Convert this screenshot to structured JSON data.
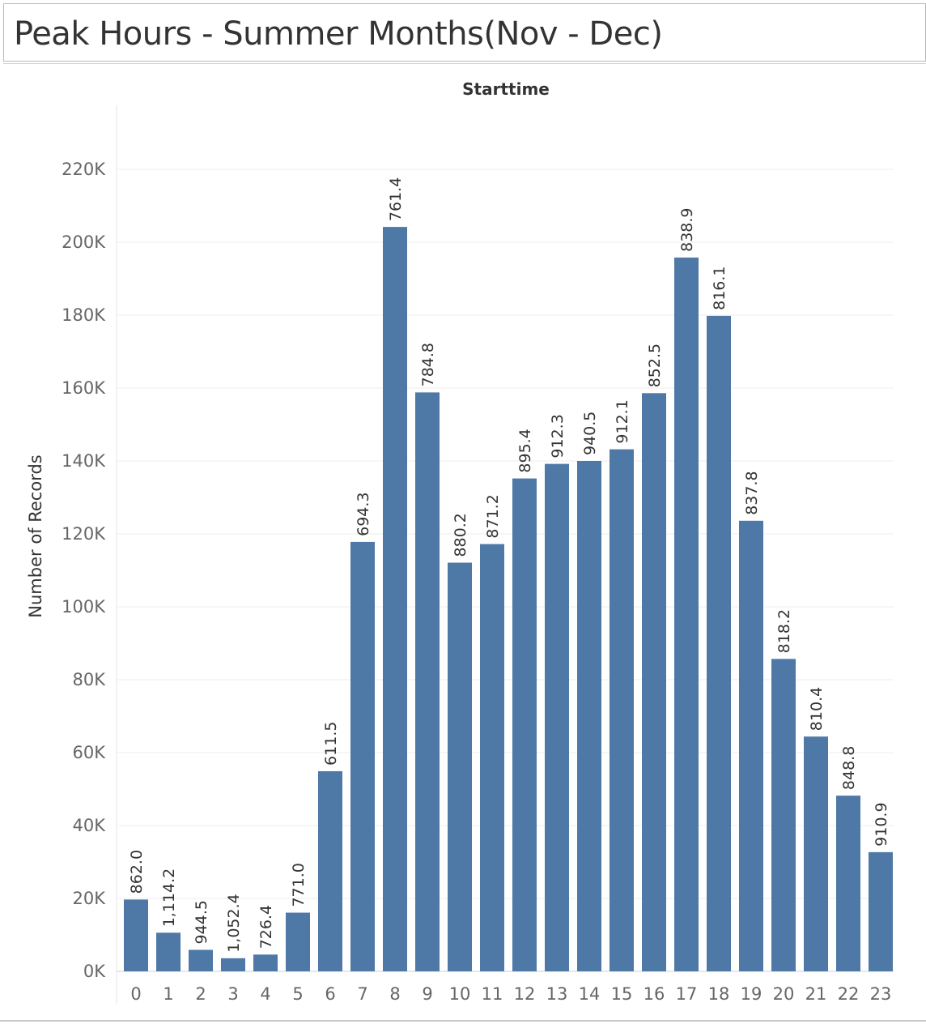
{
  "title": "Peak Hours - Summer Months(Nov - Dec)",
  "chart_data": {
    "type": "bar",
    "column_header": "Starttime",
    "ylabel": "Number of Records",
    "ylim": [
      0,
      230000
    ],
    "yticks": [
      0,
      20000,
      40000,
      60000,
      80000,
      100000,
      120000,
      140000,
      160000,
      180000,
      200000,
      220000
    ],
    "ytick_labels": [
      "0K",
      "20K",
      "40K",
      "60K",
      "80K",
      "100K",
      "120K",
      "140K",
      "160K",
      "180K",
      "200K",
      "220K"
    ],
    "grid": true,
    "categories": [
      "0",
      "1",
      "2",
      "3",
      "4",
      "5",
      "6",
      "7",
      "8",
      "9",
      "10",
      "11",
      "12",
      "13",
      "14",
      "15",
      "16",
      "17",
      "18",
      "19",
      "20",
      "21",
      "22",
      "23"
    ],
    "values": [
      19700,
      10600,
      5900,
      3600,
      4600,
      16100,
      54900,
      117800,
      204200,
      158800,
      112100,
      117200,
      135200,
      139200,
      140000,
      143200,
      158600,
      195800,
      179800,
      123600,
      85700,
      64400,
      48200,
      32700
    ],
    "data_labels": [
      "862.0",
      "1,114.2",
      "944.5",
      "1,052.4",
      "726.4",
      "771.0",
      "611.5",
      "694.3",
      "761.4",
      "784.8",
      "880.2",
      "871.2",
      "895.4",
      "912.3",
      "940.5",
      "912.1",
      "852.5",
      "838.9",
      "816.1",
      "837.8",
      "818.2",
      "810.4",
      "848.8",
      "910.9"
    ],
    "bar_color": "#4e79a7"
  }
}
